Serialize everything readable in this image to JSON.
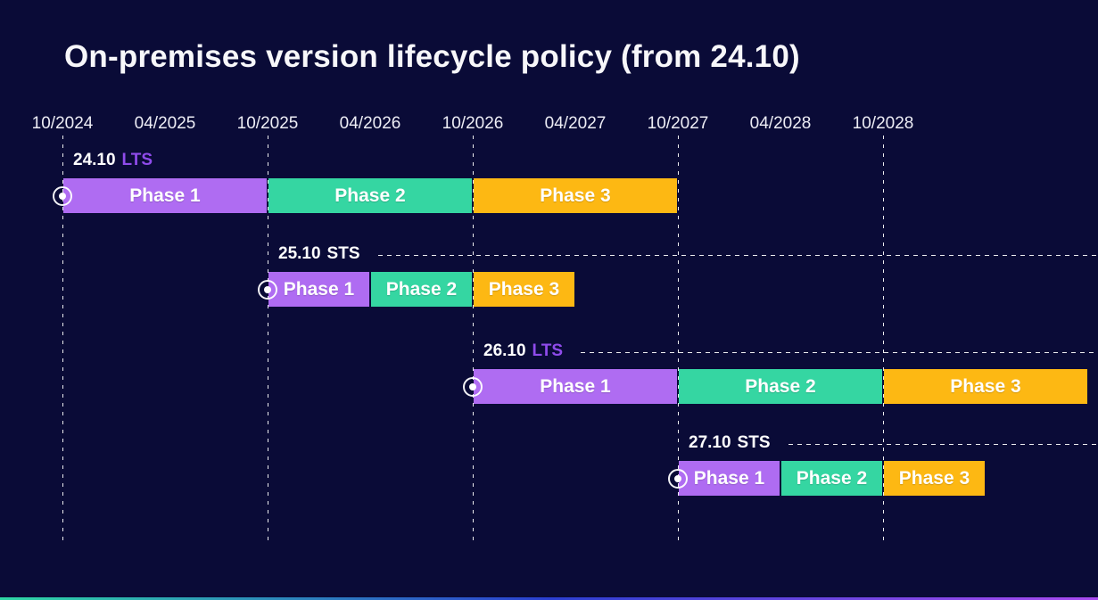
{
  "title": "On-premises version lifecycle policy (from 24.10)",
  "colors": {
    "background": "#0A0B37",
    "title_text": "#F7F7FA",
    "axis_text": "#EDEDF5",
    "gridline": "#FFFFFF",
    "phase_colors": [
      "#AF6CF2",
      "#35D6A2",
      "#FDB813"
    ],
    "lts_accent": "#8F4BEB",
    "sts_text": "#FFFFFF",
    "footer_gradient": [
      "#2FD7A5",
      "#2B3FD1",
      "#A94BF0"
    ]
  },
  "chart_data": {
    "type": "bar",
    "subtype": "gantt-timeline",
    "title": "On-premises version lifecycle policy (from 24.10)",
    "x_axis": {
      "tick_labels": [
        "10/2024",
        "04/2025",
        "10/2025",
        "04/2026",
        "10/2026",
        "04/2027",
        "10/2027",
        "04/2028",
        "10/2028"
      ],
      "gridline_ticks": [
        "10/2024",
        "10/2025",
        "10/2026",
        "10/2027",
        "10/2028"
      ],
      "months_per_tick": 6,
      "grid": "dashed-vertical-october-only"
    },
    "phase_names": [
      "Phase 1",
      "Phase 2",
      "Phase 3"
    ],
    "rows": [
      {
        "version": "24.10",
        "channel": "LTS",
        "release_date": "10/2024",
        "support_extension_line": false,
        "phases": [
          {
            "label": "Phase 1",
            "start": "10/2024",
            "end": "10/2025"
          },
          {
            "label": "Phase 2",
            "start": "10/2025",
            "end": "10/2026"
          },
          {
            "label": "Phase 3",
            "start": "10/2026",
            "end": "10/2027"
          }
        ]
      },
      {
        "version": "25.10",
        "channel": "STS",
        "release_date": "10/2025",
        "support_extension_line": true,
        "phases": [
          {
            "label": "Phase 1",
            "start": "10/2025",
            "end": "04/2026"
          },
          {
            "label": "Phase 2",
            "start": "04/2026",
            "end": "10/2026"
          },
          {
            "label": "Phase 3",
            "start": "10/2026",
            "end": "04/2027"
          }
        ]
      },
      {
        "version": "26.10",
        "channel": "LTS",
        "release_date": "10/2026",
        "support_extension_line": true,
        "phases": [
          {
            "label": "Phase 1",
            "start": "10/2026",
            "end": "10/2027"
          },
          {
            "label": "Phase 2",
            "start": "10/2027",
            "end": "10/2028"
          },
          {
            "label": "Phase 3",
            "start": "10/2028",
            "end": "10/2029"
          }
        ]
      },
      {
        "version": "27.10",
        "channel": "STS",
        "release_date": "10/2027",
        "support_extension_line": true,
        "phases": [
          {
            "label": "Phase 1",
            "start": "10/2027",
            "end": "04/2028"
          },
          {
            "label": "Phase 2",
            "start": "04/2028",
            "end": "10/2028"
          },
          {
            "label": "Phase 3",
            "start": "10/2028",
            "end": "04/2029"
          }
        ]
      }
    ]
  }
}
